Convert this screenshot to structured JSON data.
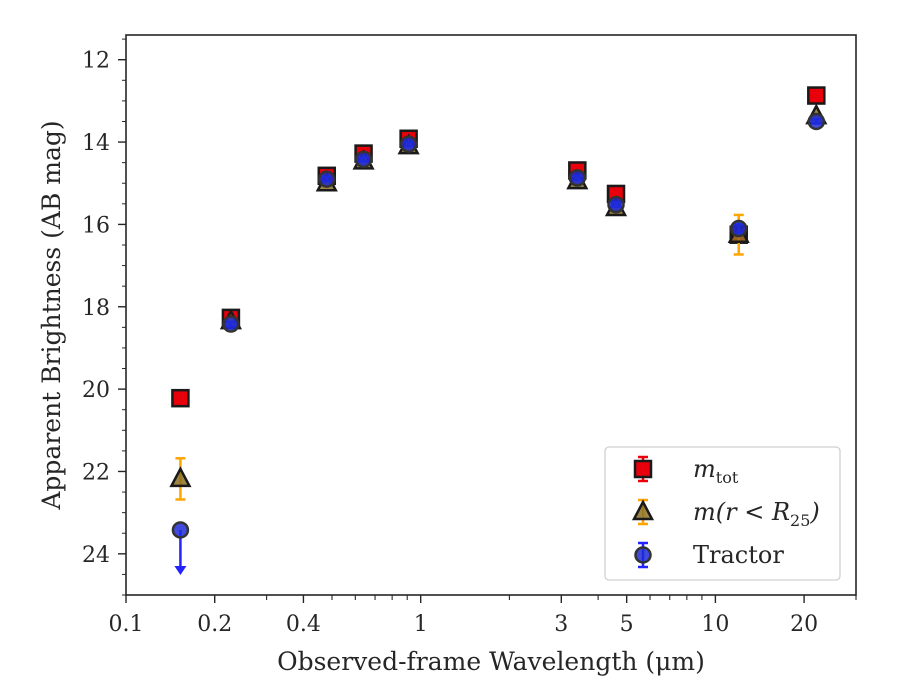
{
  "chart_data": {
    "type": "scatter",
    "xlabel": "Observed-frame Wavelength (μm)",
    "ylabel": "Apparent Brightness (AB mag)",
    "xscale": "log",
    "xlim": [
      0.1,
      30
    ],
    "ylim": [
      25.0,
      11.4
    ],
    "y_inverted": true,
    "x_ticks": [
      0.1,
      0.2,
      0.4,
      1,
      3,
      5,
      10,
      20
    ],
    "x_tick_labels": [
      "0.1",
      "0.2",
      "0.4",
      "1",
      "3",
      "5",
      "10",
      "20"
    ],
    "y_ticks": [
      12,
      14,
      16,
      18,
      20,
      22,
      24
    ],
    "y_tick_labels": [
      "12",
      "14",
      "16",
      "18",
      "20",
      "22",
      "24"
    ],
    "grid": false,
    "legend": "lower-right",
    "series": [
      {
        "key": "mtot",
        "legend_main": "m",
        "legend_sub": "tot",
        "marker": "square",
        "color": "#e8000b",
        "ecolor": "#e8000b",
        "points": [
          {
            "x": 0.153,
            "y": 20.22,
            "err": 0.05
          },
          {
            "x": 0.227,
            "y": 18.27,
            "err": 0.05
          },
          {
            "x": 0.48,
            "y": 14.82,
            "err": 0.05
          },
          {
            "x": 0.64,
            "y": 14.28,
            "err": 0.05
          },
          {
            "x": 0.91,
            "y": 13.92,
            "err": 0.05
          },
          {
            "x": 3.4,
            "y": 14.69,
            "err": 0.05
          },
          {
            "x": 4.6,
            "y": 15.26,
            "err": 0.05
          },
          {
            "x": 12.0,
            "y": 16.25,
            "err": 0.05
          },
          {
            "x": 22.0,
            "y": 12.87,
            "err": 0.05
          }
        ]
      },
      {
        "key": "mr25",
        "legend_main": "m(r < R",
        "legend_sub": "25",
        "legend_tail": ")",
        "marker": "triangle",
        "color": "#8b7024",
        "ecolor": "#ffa500",
        "points": [
          {
            "x": 0.153,
            "y": 22.18,
            "err": 0.5
          },
          {
            "x": 0.227,
            "y": 18.35,
            "err": 0.05
          },
          {
            "x": 0.48,
            "y": 15.0,
            "err": 0.05
          },
          {
            "x": 0.64,
            "y": 14.47,
            "err": 0.05
          },
          {
            "x": 0.91,
            "y": 14.1,
            "err": 0.05
          },
          {
            "x": 3.4,
            "y": 14.95,
            "err": 0.05
          },
          {
            "x": 4.6,
            "y": 15.6,
            "err": 0.05
          },
          {
            "x": 12.0,
            "y": 16.25,
            "err": 0.48
          },
          {
            "x": 22.0,
            "y": 13.37,
            "err": 0.05
          }
        ]
      },
      {
        "key": "tractor",
        "legend_main": "Tractor",
        "marker": "circle",
        "color": "#1f2bd8",
        "ecolor": "#2323ff",
        "points": [
          {
            "x": 0.153,
            "y": 23.42,
            "upper_limit": true
          },
          {
            "x": 0.227,
            "y": 18.42,
            "err": 0.05
          },
          {
            "x": 0.48,
            "y": 14.9,
            "err": 0.05
          },
          {
            "x": 0.64,
            "y": 14.42,
            "err": 0.05
          },
          {
            "x": 0.91,
            "y": 14.05,
            "err": 0.05
          },
          {
            "x": 3.4,
            "y": 14.87,
            "err": 0.05
          },
          {
            "x": 4.6,
            "y": 15.52,
            "err": 0.05
          },
          {
            "x": 12.0,
            "y": 16.1,
            "err": 0.1
          },
          {
            "x": 22.0,
            "y": 13.5,
            "err": 0.05
          }
        ]
      }
    ]
  }
}
